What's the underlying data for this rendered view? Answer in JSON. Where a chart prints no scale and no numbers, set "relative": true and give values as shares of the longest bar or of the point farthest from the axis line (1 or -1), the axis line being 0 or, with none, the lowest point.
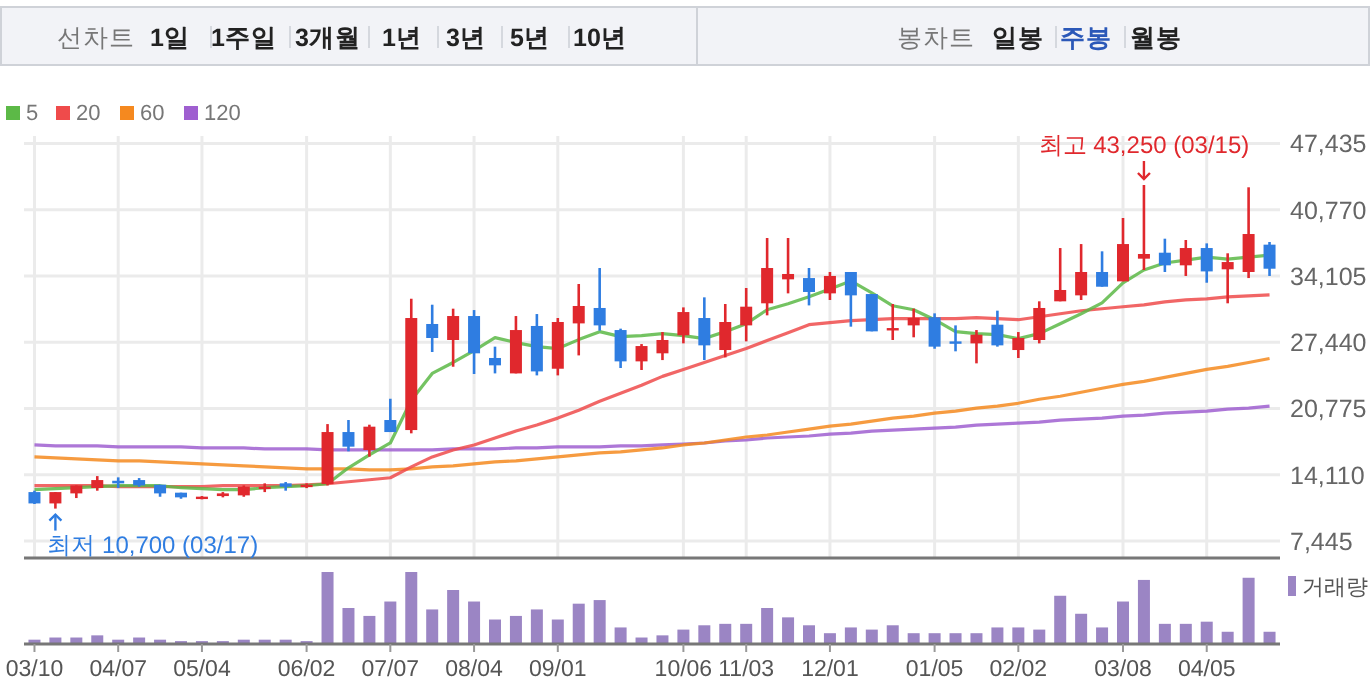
{
  "chart_data": [
    {
      "type": "other",
      "annotations": [
        "선차트",
        "1일",
        "1주일",
        "3개월",
        "1년",
        "3년",
        "5년",
        "10년",
        "봉차트",
        "일봉",
        "주봉",
        "월봉"
      ]
    },
    {
      "type": "candlestick",
      "ohlc": [
        [
          12360,
          12500,
          11160,
          11220
        ],
        [
          11220,
          12360,
          10700,
          12360
        ],
        [
          12230,
          13030,
          11760,
          13030
        ],
        [
          12770,
          13970,
          12500,
          13570
        ],
        [
          13500,
          13840,
          12770,
          13240
        ],
        [
          13570,
          13770,
          12900,
          13030
        ],
        [
          13100,
          13100,
          11890,
          12230
        ],
        [
          12300,
          12300,
          11690,
          11830
        ],
        [
          11830,
          11960,
          11630,
          11900
        ],
        [
          11960,
          12360,
          11830,
          12230
        ],
        [
          12030,
          13030,
          11890,
          12900
        ],
        [
          12700,
          13240,
          12360,
          12900
        ],
        [
          13240,
          13370,
          12500,
          12900
        ],
        [
          12970,
          13240,
          12760,
          13100
        ],
        [
          13170,
          19200,
          13030,
          18400
        ],
        [
          18400,
          19610,
          16460,
          16930
        ],
        [
          16590,
          19140,
          15920,
          18940
        ],
        [
          19610,
          21750,
          18400,
          18400
        ],
        [
          18600,
          31810,
          18270,
          29870
        ],
        [
          29270,
          31210,
          26450,
          27860
        ],
        [
          27660,
          30810,
          24970,
          30070
        ],
        [
          30070,
          30670,
          24240,
          26320
        ],
        [
          25850,
          26990,
          24300,
          25110
        ],
        [
          24300,
          30070,
          24300,
          28660
        ],
        [
          29070,
          30270,
          24100,
          24500
        ],
        [
          24770,
          29870,
          24100,
          29470
        ],
        [
          29330,
          33290,
          26110,
          31080
        ],
        [
          30880,
          34900,
          28600,
          29130
        ],
        [
          28660,
          28800,
          24840,
          25510
        ],
        [
          25510,
          27250,
          24640,
          27050
        ],
        [
          26320,
          28460,
          25640,
          27660
        ],
        [
          28130,
          30940,
          27320,
          30470
        ],
        [
          29870,
          31950,
          25640,
          27120
        ],
        [
          26650,
          31280,
          25910,
          29470
        ],
        [
          29130,
          32890,
          27520,
          31010
        ],
        [
          31350,
          37920,
          30140,
          34900
        ],
        [
          33760,
          37920,
          32350,
          34300
        ],
        [
          33890,
          34900,
          31140,
          32490
        ],
        [
          32350,
          34500,
          31680,
          34100
        ],
        [
          34500,
          34500,
          29000,
          32150
        ],
        [
          32280,
          32280,
          28530,
          28530
        ],
        [
          28730,
          31280,
          27660,
          28860
        ],
        [
          29130,
          30810,
          27930,
          29870
        ],
        [
          29940,
          30340,
          26780,
          26990
        ],
        [
          27520,
          29130,
          26520,
          27390
        ],
        [
          27320,
          28660,
          25310,
          28190
        ],
        [
          29200,
          30610,
          26990,
          27120
        ],
        [
          26650,
          28460,
          25850,
          27860
        ],
        [
          27660,
          31550,
          27320,
          30880
        ],
        [
          31550,
          36910,
          31550,
          32690
        ],
        [
          32150,
          37310,
          31680,
          34500
        ],
        [
          34500,
          36580,
          33020,
          33020
        ],
        [
          33560,
          39930,
          33560,
          37310
        ],
        [
          35840,
          43250,
          34700,
          36310
        ],
        [
          36440,
          37850,
          34500,
          35170
        ],
        [
          35170,
          37720,
          34100,
          36910
        ],
        [
          36910,
          37380,
          33420,
          34560
        ],
        [
          34770,
          36380,
          31350,
          35500
        ],
        [
          34500,
          43020,
          33890,
          38320
        ],
        [
          37250,
          37520,
          34100,
          34830
        ]
      ],
      "colors": [
        "#2f7de1",
        "#e0282d",
        "#e0282d",
        "#e0282d",
        "#2f7de1",
        "#2f7de1",
        "#2f7de1",
        "#2f7de1",
        "#e0282d",
        "#e0282d",
        "#e0282d",
        "#e0282d",
        "#2f7de1",
        "#e0282d",
        "#e0282d",
        "#2f7de1",
        "#e0282d",
        "#2f7de1",
        "#e0282d",
        "#2f7de1",
        "#e0282d",
        "#2f7de1",
        "#2f7de1",
        "#e0282d",
        "#2f7de1",
        "#e0282d",
        "#e0282d",
        "#2f7de1",
        "#2f7de1",
        "#e0282d",
        "#e0282d",
        "#e0282d",
        "#2f7de1",
        "#e0282d",
        "#e0282d",
        "#e0282d",
        "#e0282d",
        "#2f7de1",
        "#e0282d",
        "#2f7de1",
        "#2f7de1",
        "#e0282d",
        "#e0282d",
        "#2f7de1",
        "#2f7de1",
        "#e0282d",
        "#2f7de1",
        "#e0282d",
        "#e0282d",
        "#e0282d",
        "#e0282d",
        "#2f7de1",
        "#e0282d",
        "#e0282d",
        "#2f7de1",
        "#e0282d",
        "#2f7de1",
        "#e0282d",
        "#e0282d",
        "#2f7de1"
      ],
      "series": [
        {
          "name": "5",
          "type": "line",
          "color": "#5cb947",
          "values": [
            12600,
            12700,
            12800,
            12900,
            13000,
            13000,
            13000,
            12800,
            12700,
            12600,
            12600,
            12800,
            12900,
            13000,
            13200,
            14800,
            16100,
            17300,
            21600,
            24300,
            25400,
            26600,
            27900,
            27400,
            27000,
            26800,
            27700,
            28500,
            28000,
            28100,
            28300,
            28100,
            27800,
            28500,
            29300,
            30700,
            31300,
            32000,
            32800,
            33600,
            32400,
            31100,
            30700,
            29700,
            28500,
            28300,
            28200,
            27800,
            28300,
            29300,
            30300,
            31400,
            33400,
            34700,
            35400,
            35700,
            36000,
            35800,
            36000,
            36200
          ]
        },
        {
          "name": "20",
          "type": "line",
          "color": "#ef4b4b",
          "values": [
            13000,
            13000,
            13000,
            13000,
            12900,
            12900,
            12900,
            12900,
            12900,
            13000,
            13000,
            13000,
            13000,
            13100,
            13200,
            13400,
            13600,
            13800,
            14900,
            15900,
            16600,
            17100,
            17800,
            18500,
            19100,
            19800,
            20600,
            21500,
            22300,
            23100,
            24000,
            24700,
            25400,
            26100,
            26800,
            27600,
            28400,
            29200,
            29400,
            29600,
            29700,
            29800,
            29800,
            29800,
            29800,
            29900,
            29800,
            29700,
            30000,
            30300,
            30600,
            30800,
            31000,
            31200,
            31500,
            31700,
            31800,
            32000,
            32100,
            32200
          ]
        },
        {
          "name": "60",
          "type": "line",
          "color": "#f5891f",
          "values": [
            15900,
            15800,
            15700,
            15600,
            15500,
            15500,
            15400,
            15300,
            15200,
            15100,
            15000,
            14900,
            14800,
            14700,
            14700,
            14700,
            14600,
            14600,
            14700,
            14900,
            15000,
            15200,
            15400,
            15500,
            15700,
            15900,
            16100,
            16300,
            16400,
            16600,
            16800,
            17100,
            17300,
            17600,
            17900,
            18100,
            18400,
            18700,
            19000,
            19200,
            19500,
            19800,
            20000,
            20300,
            20500,
            20800,
            21000,
            21300,
            21700,
            22000,
            22400,
            22800,
            23200,
            23500,
            23900,
            24300,
            24700,
            25000,
            25400,
            25800
          ]
        },
        {
          "name": "120",
          "type": "line",
          "color": "#9f5fd0",
          "values": [
            17100,
            17000,
            17000,
            17000,
            16900,
            16900,
            16900,
            16900,
            16800,
            16800,
            16800,
            16700,
            16700,
            16700,
            16600,
            16600,
            16600,
            16600,
            16600,
            16600,
            16700,
            16700,
            16700,
            16800,
            16800,
            16900,
            16900,
            16900,
            17000,
            17000,
            17100,
            17200,
            17300,
            17500,
            17600,
            17800,
            17900,
            18000,
            18200,
            18300,
            18500,
            18600,
            18700,
            18800,
            18900,
            19100,
            19200,
            19300,
            19400,
            19600,
            19700,
            19800,
            20000,
            20100,
            20300,
            20400,
            20500,
            20700,
            20800,
            21000
          ]
        }
      ],
      "ylim": [
        5730,
        48180
      ],
      "yticks": [
        {
          "value": 7445,
          "label": "7,445"
        },
        {
          "value": 14110,
          "label": "14,110"
        },
        {
          "value": 20775,
          "label": "20,775"
        },
        {
          "value": 27440,
          "label": "27,440"
        },
        {
          "value": 34105,
          "label": "34,105"
        },
        {
          "value": 40770,
          "label": "40,770"
        },
        {
          "value": 47435,
          "label": "47,435"
        }
      ],
      "grid": true,
      "legend": "top left",
      "tick_labels": "y",
      "annotations": [
        "최고 43,250 (03/15)",
        "최저 10,700 (03/17)"
      ]
    },
    {
      "type": "bar",
      "relative": true,
      "legend": "top right",
      "tick_labels": "x",
      "categories": [
        "03/10",
        null,
        null,
        null,
        "04/07",
        null,
        null,
        null,
        "05/04",
        null,
        null,
        null,
        null,
        "06/02",
        null,
        null,
        null,
        "07/07",
        null,
        null,
        null,
        "08/04",
        null,
        null,
        null,
        "09/01",
        null,
        null,
        null,
        null,
        null,
        "10/06",
        null,
        null,
        "11/03",
        null,
        null,
        null,
        "12/01",
        null,
        null,
        null,
        null,
        "01/05",
        null,
        null,
        null,
        "02/02",
        null,
        null,
        null,
        null,
        "03/08",
        null,
        null,
        null,
        "04/05",
        null,
        null,
        null
      ],
      "series": [
        {
          "name": "거래량",
          "color": "#9b85c4",
          "values": [
            0.06,
            0.09,
            0.09,
            0.12,
            0.06,
            0.09,
            0.06,
            0.04,
            0.04,
            0.04,
            0.06,
            0.06,
            0.06,
            0.04,
            1,
            0.5,
            0.39,
            0.59,
            1,
            0.48,
            0.75,
            0.59,
            0.34,
            0.39,
            0.48,
            0.34,
            0.56,
            0.61,
            0.23,
            0.09,
            0.12,
            0.2,
            0.26,
            0.28,
            0.28,
            0.5,
            0.37,
            0.26,
            0.15,
            0.23,
            0.2,
            0.26,
            0.15,
            0.15,
            0.15,
            0.15,
            0.23,
            0.23,
            0.2,
            0.67,
            0.42,
            0.23,
            0.59,
            0.89,
            0.28,
            0.28,
            0.31,
            0.17,
            0.92,
            0.17
          ]
        }
      ]
    }
  ]
}
